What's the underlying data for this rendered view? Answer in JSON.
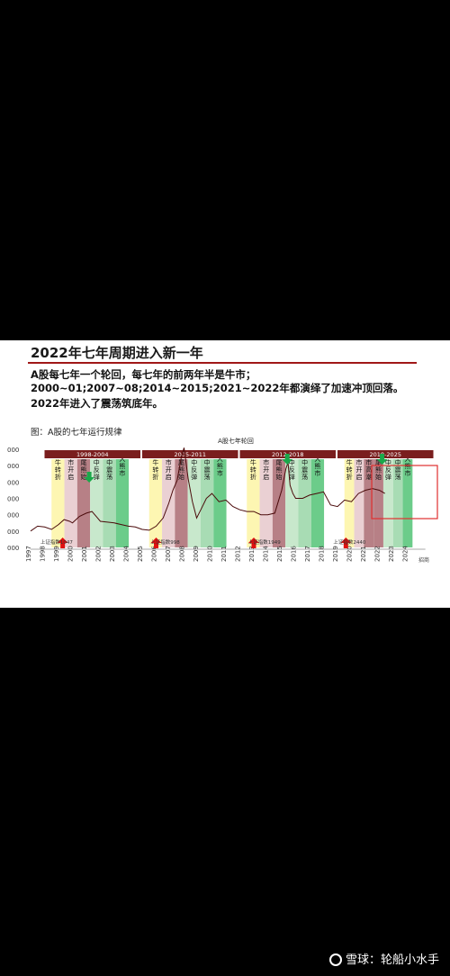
{
  "slide": {
    "title": "2022年七年周期进入新一年",
    "bullets": [
      "A股每七年一个轮回，每七年的前两年半是牛市；",
      "2000~01;2007~08;2014~2015;2021~2022年都演绎了加速冲顶回落。",
      "2022年进入了震荡筑底年。"
    ],
    "figure_caption": "图：A股的七年运行规律"
  },
  "chart_data": {
    "type": "line",
    "title": "A股七年轮回",
    "x_ticks": [
      "1997",
      "1998",
      "1999",
      "2000",
      "2001",
      "2002",
      "2003",
      "2004",
      "2005",
      "2006",
      "2007",
      "2008",
      "2009",
      "2010",
      "2011",
      "2012",
      "2013",
      "2014",
      "2015",
      "2016",
      "2017",
      "2018",
      "2019",
      "2020",
      "2021",
      "2022",
      "2023",
      "2024"
    ],
    "y_ticks": [
      "000",
      "000",
      "000",
      "000",
      "000",
      "000",
      "000"
    ],
    "xlim": [
      1997,
      2025.5
    ],
    "ylim": [
      0,
      6500
    ],
    "series": [
      {
        "x": [
          1997,
          1997.5,
          1998,
          1998.5,
          1999,
          1999.4,
          1999.8,
          2000,
          2000.5,
          2001,
          2001.4,
          2001.8,
          2002,
          2002.5,
          2003,
          2003.5,
          2004,
          2004.5,
          2005,
          2005.5,
          2006,
          2006.5,
          2006.9,
          2007.2,
          2007.5,
          2007.8,
          2008,
          2008.3,
          2008.6,
          2008.9,
          2009.2,
          2009.6,
          2010,
          2010.5,
          2011,
          2011.5,
          2012,
          2012.5,
          2013,
          2013.5,
          2014,
          2014.5,
          2015,
          2015.3,
          2015.45,
          2015.6,
          2015.8,
          2016,
          2016.5,
          2017,
          2017.5,
          2018,
          2018.5,
          2019,
          2019.5,
          2020,
          2020.5,
          2021,
          2021.5,
          2022,
          2022.4
        ],
        "y": [
          1000,
          1300,
          1250,
          1100,
          1400,
          1700,
          1600,
          1500,
          1900,
          2100,
          2200,
          1800,
          1600,
          1550,
          1500,
          1400,
          1300,
          1250,
          1100,
          1050,
          1300,
          1800,
          2700,
          3500,
          4100,
          5500,
          6100,
          4200,
          2800,
          1800,
          2300,
          3000,
          3300,
          2800,
          2900,
          2500,
          2300,
          2200,
          2200,
          2000,
          2000,
          2100,
          3500,
          4800,
          5200,
          3800,
          3300,
          3000,
          3000,
          3200,
          3300,
          3400,
          2600,
          2500,
          2900,
          2800,
          3300,
          3500,
          3600,
          3500,
          3300
        ]
      }
    ],
    "periods": [
      "1998-2004",
      "2005-2011",
      "2012-2018",
      "2019-2025"
    ],
    "phases": [
      "熊牛转折",
      "牛市开启",
      "牛尾熊始",
      "熊中反弹",
      "熊中震荡",
      "大熊市"
    ],
    "phases_2019": [
      "熊牛转折",
      "牛市开启",
      "牛市高潮",
      "牛尾熊始",
      "熊中反弹",
      "熊中震荡",
      "大熊市"
    ],
    "annotations": [
      "上证指数1047",
      "上证指数998",
      "上证指数1949",
      "上证指数2440"
    ],
    "source": "招商"
  },
  "colors": {
    "header_band": "#7a1e1e",
    "line": "#4a0a0a",
    "title_rule": "#a01818",
    "up_arrow": "#e01010",
    "down_arrow": "#1aa84a",
    "highlight_box": "#e03030",
    "phase_colors": [
      "#fdf6b2",
      "#ead0d3",
      "#b78086",
      "#c8e8cc",
      "#a8dcb4",
      "#6ccc8a"
    ]
  },
  "watermark": "雪球：轮船小水手"
}
